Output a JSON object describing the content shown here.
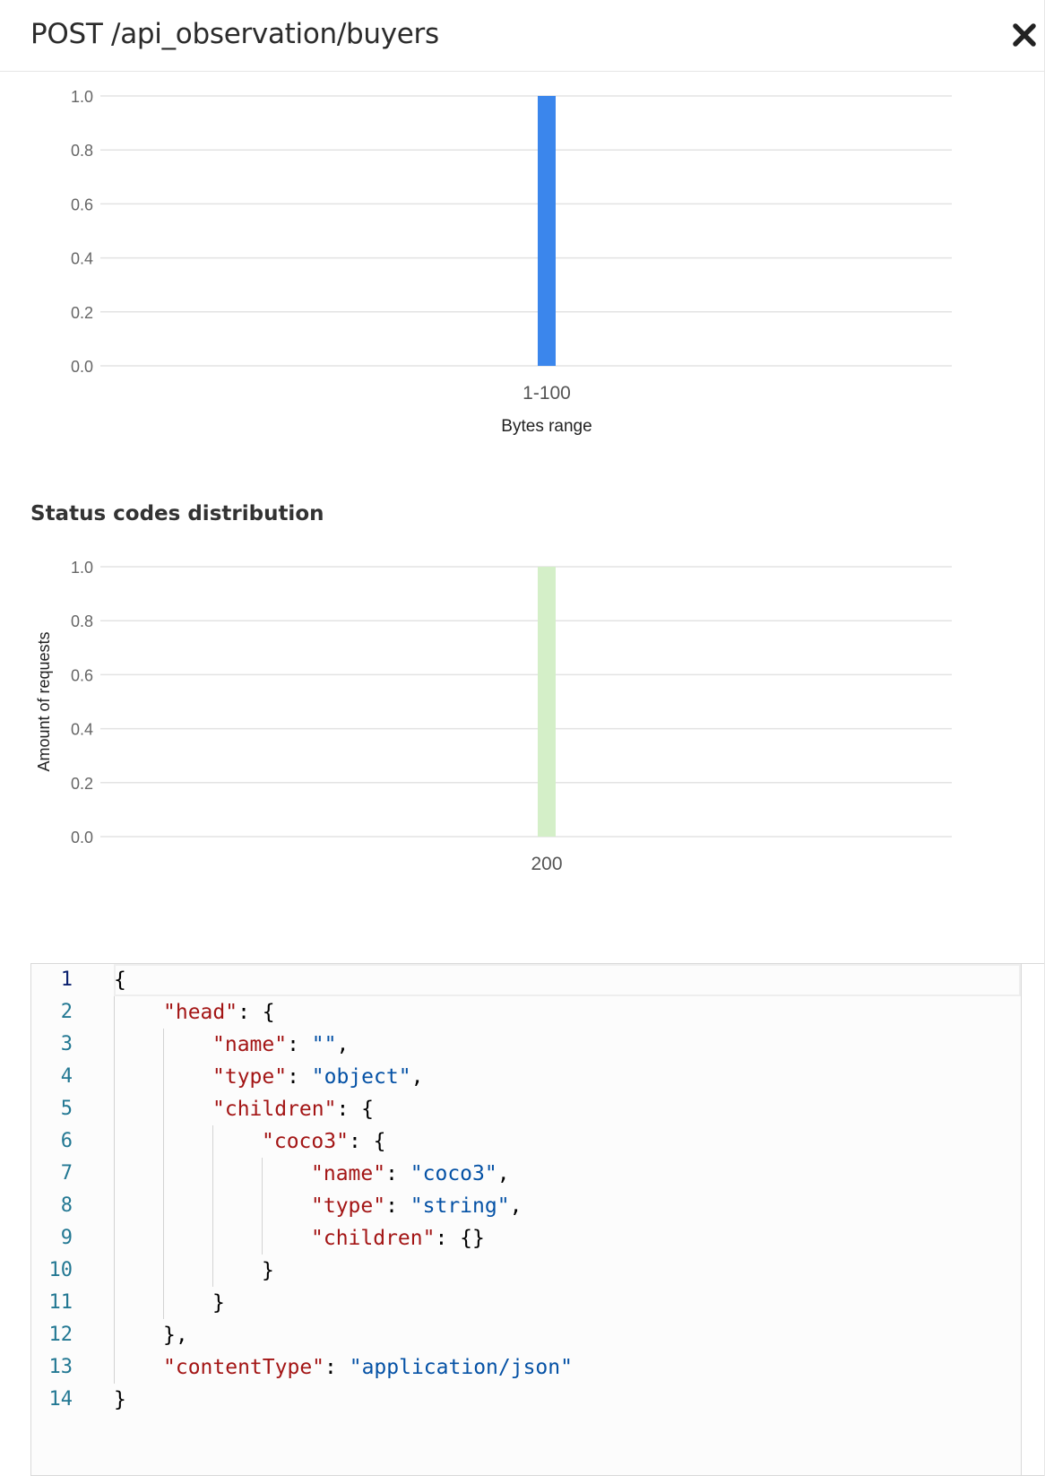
{
  "modal": {
    "title": "POST /api_observation/buyers",
    "close_icon": "close-icon"
  },
  "colors": {
    "bytes_bar": "#3b86ec",
    "status_bar": "#d4efc8",
    "grid": "#e3e3e3",
    "tick_text": "#666666",
    "json_key": "#a31515",
    "json_string": "#0451a5",
    "line_number": "#237893"
  },
  "charts": {
    "bytes": {
      "type": "bar",
      "categories": [
        "1-100"
      ],
      "values": [
        1.0
      ],
      "ylim": [
        0,
        1.0
      ],
      "yticks": [
        "0.0",
        "0.2",
        "0.4",
        "0.6",
        "0.8",
        "1.0"
      ],
      "xlabel": "Bytes range",
      "ylabel": "",
      "grid": true,
      "legend": "none"
    },
    "status": {
      "section_title": "Status codes distribution",
      "type": "bar",
      "categories": [
        "200"
      ],
      "values": [
        1.0
      ],
      "ylim": [
        0,
        1.0
      ],
      "yticks": [
        "0.0",
        "0.2",
        "0.4",
        "0.6",
        "0.8",
        "1.0"
      ],
      "xlabel": "",
      "ylabel": "Amount of requests",
      "grid": true,
      "legend": "none"
    }
  },
  "chart_data": [
    {
      "type": "bar",
      "categories": [
        "1-100"
      ],
      "values": [
        1.0
      ],
      "xlabel": "Bytes range",
      "ylabel": "",
      "ylim": [
        0,
        1.0
      ]
    },
    {
      "type": "bar",
      "title": "Status codes distribution",
      "categories": [
        "200"
      ],
      "values": [
        1.0
      ],
      "xlabel": "",
      "ylabel": "Amount of requests",
      "ylim": [
        0,
        1.0
      ]
    }
  ],
  "editor": {
    "lines": [
      {
        "n": "1",
        "indent": 0,
        "tokens": [
          {
            "t": "{",
            "k": "punc"
          }
        ]
      },
      {
        "n": "2",
        "indent": 1,
        "tokens": [
          {
            "t": "\"head\"",
            "k": "key"
          },
          {
            "t": ": {",
            "k": "punc"
          }
        ]
      },
      {
        "n": "3",
        "indent": 2,
        "tokens": [
          {
            "t": "\"name\"",
            "k": "key"
          },
          {
            "t": ": ",
            "k": "punc"
          },
          {
            "t": "\"\"",
            "k": "str"
          },
          {
            "t": ",",
            "k": "punc"
          }
        ]
      },
      {
        "n": "4",
        "indent": 2,
        "tokens": [
          {
            "t": "\"type\"",
            "k": "key"
          },
          {
            "t": ": ",
            "k": "punc"
          },
          {
            "t": "\"object\"",
            "k": "str"
          },
          {
            "t": ",",
            "k": "punc"
          }
        ]
      },
      {
        "n": "5",
        "indent": 2,
        "tokens": [
          {
            "t": "\"children\"",
            "k": "key"
          },
          {
            "t": ": {",
            "k": "punc"
          }
        ]
      },
      {
        "n": "6",
        "indent": 3,
        "tokens": [
          {
            "t": "\"coco3\"",
            "k": "key"
          },
          {
            "t": ": {",
            "k": "punc"
          }
        ]
      },
      {
        "n": "7",
        "indent": 4,
        "tokens": [
          {
            "t": "\"name\"",
            "k": "key"
          },
          {
            "t": ": ",
            "k": "punc"
          },
          {
            "t": "\"coco3\"",
            "k": "str"
          },
          {
            "t": ",",
            "k": "punc"
          }
        ]
      },
      {
        "n": "8",
        "indent": 4,
        "tokens": [
          {
            "t": "\"type\"",
            "k": "key"
          },
          {
            "t": ": ",
            "k": "punc"
          },
          {
            "t": "\"string\"",
            "k": "str"
          },
          {
            "t": ",",
            "k": "punc"
          }
        ]
      },
      {
        "n": "9",
        "indent": 4,
        "tokens": [
          {
            "t": "\"children\"",
            "k": "key"
          },
          {
            "t": ": {}",
            "k": "punc"
          }
        ]
      },
      {
        "n": "10",
        "indent": 3,
        "tokens": [
          {
            "t": "}",
            "k": "punc"
          }
        ]
      },
      {
        "n": "11",
        "indent": 2,
        "tokens": [
          {
            "t": "}",
            "k": "punc"
          }
        ]
      },
      {
        "n": "12",
        "indent": 1,
        "tokens": [
          {
            "t": "},",
            "k": "punc"
          }
        ]
      },
      {
        "n": "13",
        "indent": 1,
        "tokens": [
          {
            "t": "\"contentType\"",
            "k": "key"
          },
          {
            "t": ": ",
            "k": "punc"
          },
          {
            "t": "\"application/json\"",
            "k": "str"
          }
        ]
      },
      {
        "n": "14",
        "indent": 0,
        "tokens": [
          {
            "t": "}",
            "k": "punc"
          }
        ]
      }
    ],
    "active_line": "1"
  }
}
